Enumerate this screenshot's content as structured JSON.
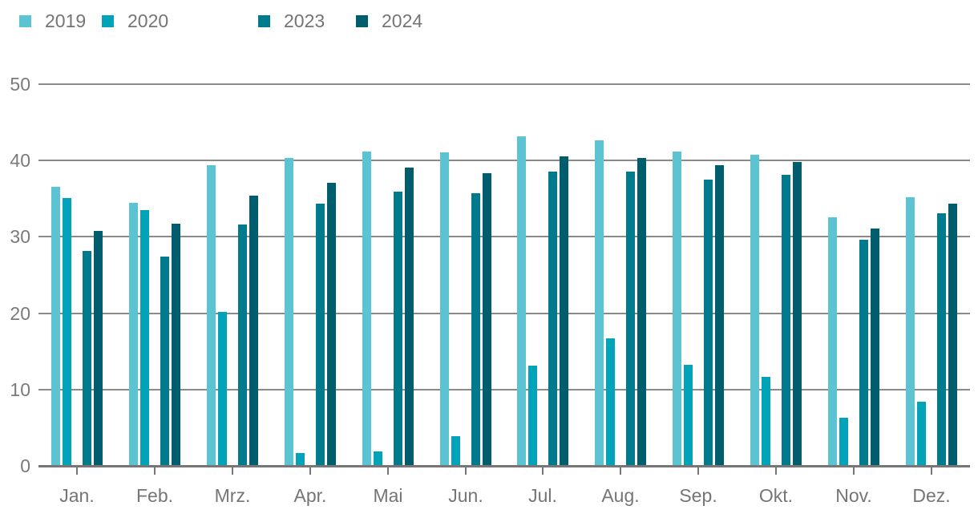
{
  "chart_data": {
    "type": "bar",
    "title": "",
    "categories": [
      "Jan.",
      "Feb.",
      "Mrz.",
      "Apr.",
      "Mai",
      "Jun.",
      "Jul.",
      "Aug.",
      "Sep.",
      "Okt.",
      "Nov.",
      "Dez."
    ],
    "series": [
      {
        "name": "2019",
        "color": "#5cc3d2",
        "values": [
          36.6,
          34.5,
          39.4,
          40.3,
          41.2,
          41.1,
          43.2,
          42.6,
          41.2,
          40.8,
          32.6,
          35.2
        ]
      },
      {
        "name": "2020",
        "color": "#00a3b8",
        "values": [
          35.1,
          33.5,
          20.2,
          1.7,
          1.9,
          3.9,
          13.1,
          16.7,
          13.2,
          11.7,
          6.3,
          8.4
        ]
      },
      {
        "name": "2023",
        "color": "#007b8e",
        "values": [
          28.2,
          27.4,
          31.6,
          34.3,
          35.9,
          35.7,
          38.5,
          38.6,
          37.5,
          38.1,
          29.6,
          33.1
        ]
      },
      {
        "name": "2024",
        "color": "#005d6e",
        "values": [
          30.8,
          31.7,
          35.4,
          37.1,
          39.1,
          38.3,
          40.5,
          40.3,
          39.4,
          39.8,
          31.1,
          34.4
        ]
      }
    ],
    "y_ticks": [
      0,
      10,
      20,
      30,
      40,
      50
    ],
    "ylim": [
      0,
      50
    ],
    "grid": true,
    "legend_position": "top",
    "xlabel": "",
    "ylabel": ""
  }
}
